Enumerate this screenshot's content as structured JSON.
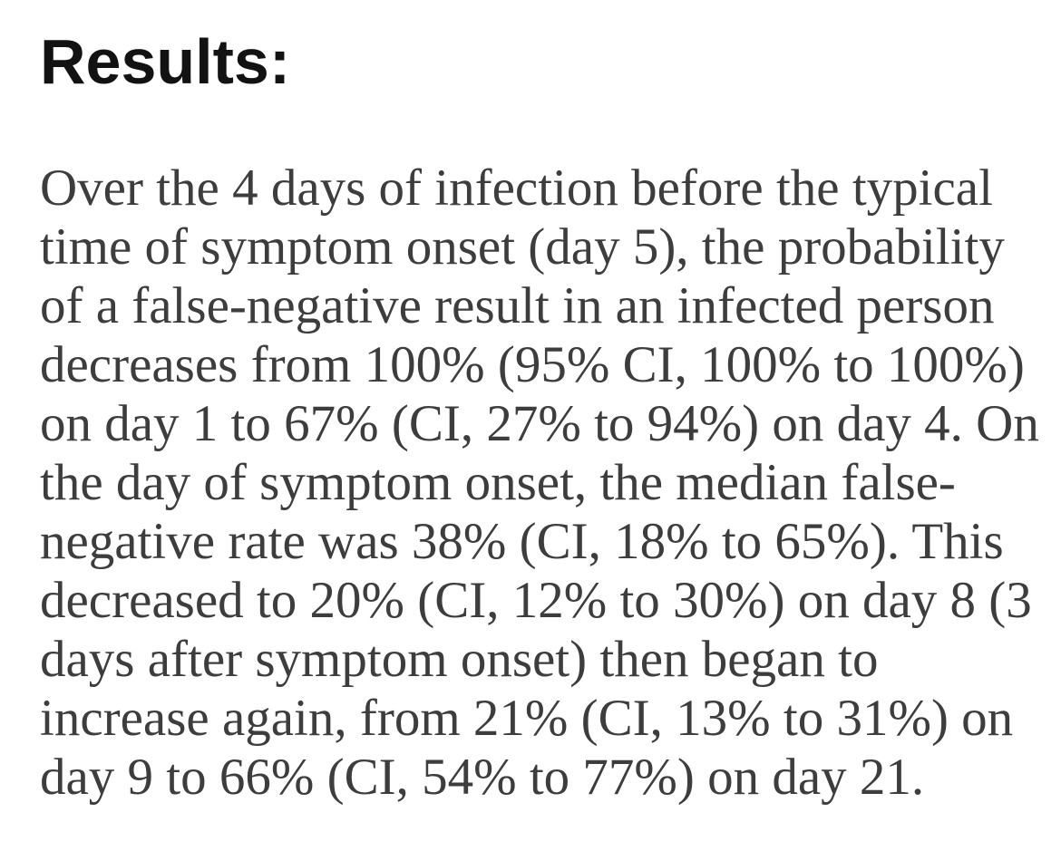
{
  "page": {
    "background_color": "#ffffff",
    "heading_color": "#121212",
    "body_text_color": "#3d3d3d"
  },
  "heading": {
    "text": "Results:"
  },
  "paragraph": {
    "lines": [
      "Over the 4 days of infection before the typical",
      "time of symptom onset (day 5), the probability",
      "of a false-negative result in an infected person",
      "decreases from 100% (95% CI, 100% to 100%)",
      "on day 1 to 67% (CI, 27% to 94%) on day 4. On",
      "the day of symptom onset, the median false-",
      "negative rate was 38% (CI, 18% to 65%). This",
      "decreased to 20% (CI, 12% to 30%) on day 8 (3",
      "days after symptom onset) then began to",
      "increase again, from 21% (CI, 13% to 31%) on",
      "day 9 to 66% (CI, 54% to 77%) on day 21."
    ],
    "full_text": "Over the 4 days of infection before the typical time of symptom onset (day 5), the probability of a false-negative result in an infected person decreases from 100% (95% CI, 100% to 100%) on day 1 to 67% (CI, 27% to 94%) on day 4. On the day of symptom onset, the median false-negative rate was 38% (CI, 18% to 65%). This decreased to 20% (CI, 12% to 30%) on day 8 (3 days after symptom onset) then began to increase again, from 21% (CI, 13% to 31%) on day 9 to 66% (CI, 54% to 77%) on day 21."
  }
}
